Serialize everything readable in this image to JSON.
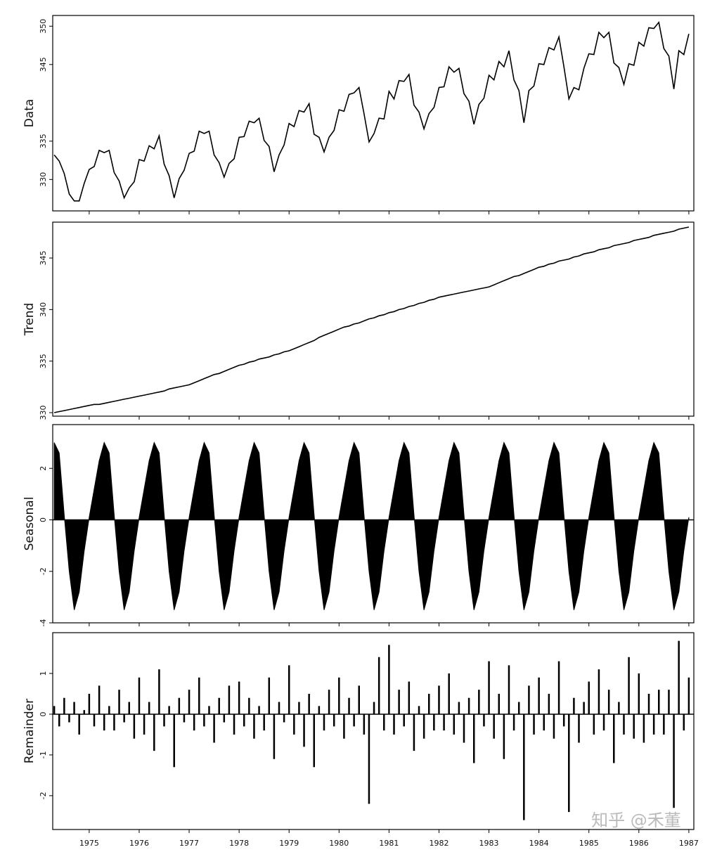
{
  "chart_data": [
    {
      "type": "line",
      "ylabel": "Data",
      "color": "#000000",
      "xlim": [
        1974.27,
        1987.1
      ],
      "ylim": [
        325.9,
        351.4
      ],
      "yticks": [
        330,
        335,
        345,
        350
      ],
      "x": [
        1974.3,
        1974.4,
        1974.5,
        1974.6,
        1974.7,
        1974.8,
        1974.9,
        1975.0,
        1975.1,
        1975.2,
        1975.3,
        1975.4,
        1975.5,
        1975.6,
        1975.7,
        1975.8,
        1975.9,
        1976.0,
        1976.1,
        1976.2,
        1976.3,
        1976.4,
        1976.5,
        1976.6,
        1976.7,
        1976.8,
        1976.9,
        1977.0,
        1977.1,
        1977.2,
        1977.3,
        1977.4,
        1977.5,
        1977.6,
        1977.7,
        1977.8,
        1977.9,
        1978.0,
        1978.1,
        1978.2,
        1978.3,
        1978.4,
        1978.5,
        1978.6,
        1978.7,
        1978.8,
        1978.9,
        1979.0,
        1979.1,
        1979.2,
        1979.3,
        1979.4,
        1979.5,
        1979.6,
        1979.7,
        1979.8,
        1979.9,
        1980.0,
        1980.1,
        1980.2,
        1980.3,
        1980.4,
        1980.5,
        1980.6,
        1980.7,
        1980.8,
        1980.9,
        1981.0,
        1981.1,
        1981.2,
        1981.3,
        1981.4,
        1981.5,
        1981.6,
        1981.7,
        1981.8,
        1981.9,
        1982.0,
        1982.1,
        1982.2,
        1982.3,
        1982.4,
        1982.5,
        1982.6,
        1982.7,
        1982.8,
        1982.9,
        1983.0,
        1983.1,
        1983.2,
        1983.3,
        1983.4,
        1983.5,
        1983.6,
        1983.7,
        1983.8,
        1983.9,
        1984.0,
        1984.1,
        1984.2,
        1984.3,
        1984.4,
        1984.5,
        1984.6,
        1984.7,
        1984.8,
        1984.9,
        1985.0,
        1985.1,
        1985.2,
        1985.3,
        1985.4,
        1985.5,
        1985.6,
        1985.7,
        1985.8,
        1985.9,
        1986.0,
        1986.1,
        1986.2,
        1986.3,
        1986.4,
        1986.5,
        1986.6,
        1986.7,
        1986.8,
        1986.9,
        1987.0
      ],
      "values": [
        333.2,
        332.4,
        330.8,
        328.1,
        327.2,
        327.2,
        329.5,
        331.3,
        331.7,
        333.8,
        333.5,
        333.8,
        330.9,
        329.8,
        327.6,
        328.9,
        329.7,
        332.6,
        332.4,
        334.4,
        334.0,
        335.7,
        332.0,
        330.5,
        327.6,
        330.1,
        331.2,
        333.4,
        333.7,
        336.3,
        336.0,
        336.3,
        333.2,
        332.2,
        330.3,
        332.1,
        332.7,
        335.5,
        335.6,
        337.6,
        337.4,
        338.0,
        335.1,
        334.3,
        331.0,
        333.2,
        334.5,
        337.3,
        336.9,
        339.0,
        338.8,
        339.9,
        335.9,
        335.5,
        333.6,
        335.5,
        336.4,
        339.1,
        338.9,
        341.1,
        341.3,
        342.0,
        338.6,
        334.9,
        336.0,
        338.0,
        337.9,
        341.5,
        340.5,
        342.9,
        342.8,
        343.7,
        339.7,
        338.8,
        336.6,
        338.6,
        339.4,
        342.0,
        342.1,
        344.7,
        344.0,
        344.5,
        341.2,
        340.2,
        337.2,
        339.8,
        340.6,
        343.6,
        343.0,
        345.4,
        344.7,
        346.8,
        343.0,
        341.6,
        337.4,
        341.6,
        342.2,
        345.1,
        345.0,
        347.2,
        346.9,
        348.6,
        344.7,
        340.5,
        342.0,
        341.7,
        344.5,
        346.4,
        346.3,
        349.2,
        348.5,
        349.2,
        345.2,
        344.6,
        342.4,
        345.1,
        344.9,
        347.9,
        347.4,
        349.8,
        349.7,
        350.5,
        347.1,
        346.1,
        341.8,
        346.8,
        346.3,
        349.0
      ]
    },
    {
      "type": "line",
      "ylabel": "Trend",
      "color": "#000000",
      "xlim": [
        1974.27,
        1987.1
      ],
      "ylim": [
        329.66,
        348.48
      ],
      "yticks": [
        330,
        335,
        340,
        345
      ],
      "x": [
        1974.3,
        1974.4,
        1974.5,
        1974.6,
        1974.7,
        1974.8,
        1974.9,
        1975.0,
        1975.1,
        1975.2,
        1975.3,
        1975.4,
        1975.5,
        1975.6,
        1975.7,
        1975.8,
        1975.9,
        1976.0,
        1976.1,
        1976.2,
        1976.3,
        1976.4,
        1976.5,
        1976.6,
        1976.7,
        1976.8,
        1976.9,
        1977.0,
        1977.1,
        1977.2,
        1977.3,
        1977.4,
        1977.5,
        1977.6,
        1977.7,
        1977.8,
        1977.9,
        1978.0,
        1978.1,
        1978.2,
        1978.3,
        1978.4,
        1978.5,
        1978.6,
        1978.7,
        1978.8,
        1978.9,
        1979.0,
        1979.1,
        1979.2,
        1979.3,
        1979.4,
        1979.5,
        1979.6,
        1979.7,
        1979.8,
        1979.9,
        1980.0,
        1980.1,
        1980.2,
        1980.3,
        1980.4,
        1980.5,
        1980.6,
        1980.7,
        1980.8,
        1980.9,
        1981.0,
        1981.1,
        1981.2,
        1981.3,
        1981.4,
        1981.5,
        1981.6,
        1981.7,
        1981.8,
        1981.9,
        1982.0,
        1982.1,
        1982.2,
        1982.3,
        1982.4,
        1982.5,
        1982.6,
        1982.7,
        1982.8,
        1982.9,
        1983.0,
        1983.1,
        1983.2,
        1983.3,
        1983.4,
        1983.5,
        1983.6,
        1983.7,
        1983.8,
        1983.9,
        1984.0,
        1984.1,
        1984.2,
        1984.3,
        1984.4,
        1984.5,
        1984.6,
        1984.7,
        1984.8,
        1984.9,
        1985.0,
        1985.1,
        1985.2,
        1985.3,
        1985.4,
        1985.5,
        1985.6,
        1985.7,
        1985.8,
        1985.9,
        1986.0,
        1986.1,
        1986.2,
        1986.3,
        1986.4,
        1986.5,
        1986.6,
        1986.7,
        1986.8,
        1986.9,
        1987.0
      ],
      "values": [
        330.0,
        330.1,
        330.2,
        330.3,
        330.4,
        330.5,
        330.6,
        330.7,
        330.8,
        330.8,
        330.9,
        331.0,
        331.1,
        331.2,
        331.3,
        331.4,
        331.5,
        331.6,
        331.7,
        331.8,
        331.9,
        332.0,
        332.1,
        332.3,
        332.4,
        332.5,
        332.6,
        332.7,
        332.9,
        333.1,
        333.3,
        333.5,
        333.7,
        333.8,
        334.0,
        334.2,
        334.4,
        334.6,
        334.7,
        334.9,
        335.0,
        335.2,
        335.3,
        335.4,
        335.6,
        335.7,
        335.9,
        336.0,
        336.2,
        336.4,
        336.6,
        336.8,
        337.0,
        337.3,
        337.5,
        337.7,
        337.9,
        338.1,
        338.3,
        338.4,
        338.6,
        338.7,
        338.9,
        339.1,
        339.2,
        339.4,
        339.5,
        339.7,
        339.8,
        340.0,
        340.1,
        340.3,
        340.4,
        340.6,
        340.7,
        340.9,
        341.0,
        341.2,
        341.3,
        341.4,
        341.5,
        341.6,
        341.7,
        341.8,
        341.9,
        342.0,
        342.1,
        342.2,
        342.4,
        342.6,
        342.8,
        343.0,
        343.2,
        343.3,
        343.5,
        343.7,
        343.9,
        344.1,
        344.2,
        344.4,
        344.5,
        344.7,
        344.8,
        344.9,
        345.1,
        345.2,
        345.4,
        345.5,
        345.6,
        345.8,
        345.9,
        346.0,
        346.2,
        346.3,
        346.4,
        346.5,
        346.7,
        346.8,
        346.9,
        347.0,
        347.2,
        347.3,
        347.4,
        347.5,
        347.6,
        347.8,
        347.9,
        348.0
      ]
    },
    {
      "type": "area",
      "ylabel": "Seasonal",
      "color": "#000000",
      "xlim": [
        1974.27,
        1987.1
      ],
      "ylim": [
        -4,
        3.7
      ],
      "yticks": [
        -4,
        -2,
        0,
        2
      ],
      "x": [
        1974.3,
        1974.4,
        1974.5,
        1974.6,
        1974.7,
        1974.8,
        1974.9,
        1975.0,
        1975.1,
        1975.2,
        1975.3,
        1975.4,
        1975.5,
        1975.6,
        1975.7,
        1975.8,
        1975.9,
        1976.0,
        1976.1,
        1976.2,
        1976.3,
        1976.4,
        1976.5,
        1976.6,
        1976.7,
        1976.8,
        1976.9,
        1977.0,
        1977.1,
        1977.2,
        1977.3,
        1977.4,
        1977.5,
        1977.6,
        1977.7,
        1977.8,
        1977.9,
        1978.0,
        1978.1,
        1978.2,
        1978.3,
        1978.4,
        1978.5,
        1978.6,
        1978.7,
        1978.8,
        1978.9,
        1979.0,
        1979.1,
        1979.2,
        1979.3,
        1979.4,
        1979.5,
        1979.6,
        1979.7,
        1979.8,
        1979.9,
        1980.0,
        1980.1,
        1980.2,
        1980.3,
        1980.4,
        1980.5,
        1980.6,
        1980.7,
        1980.8,
        1980.9,
        1981.0,
        1981.1,
        1981.2,
        1981.3,
        1981.4,
        1981.5,
        1981.6,
        1981.7,
        1981.8,
        1981.9,
        1982.0,
        1982.1,
        1982.2,
        1982.3,
        1982.4,
        1982.5,
        1982.6,
        1982.7,
        1982.8,
        1982.9,
        1983.0,
        1983.1,
        1983.2,
        1983.3,
        1983.4,
        1983.5,
        1983.6,
        1983.7,
        1983.8,
        1983.9,
        1984.0,
        1984.1,
        1984.2,
        1984.3,
        1984.4,
        1984.5,
        1984.6,
        1984.7,
        1984.8,
        1984.9,
        1985.0,
        1985.1,
        1985.2,
        1985.3,
        1985.4,
        1985.5,
        1985.6,
        1985.7,
        1985.8,
        1985.9,
        1986.0,
        1986.1,
        1986.2,
        1986.3,
        1986.4,
        1986.5,
        1986.6,
        1986.7,
        1986.8,
        1986.9,
        1987.0
      ],
      "values": [
        3.0,
        2.6,
        0.2,
        -2.0,
        -3.5,
        -2.8,
        -1.2,
        0.1,
        1.2,
        2.3,
        3.0,
        2.6,
        0.2,
        -2.0,
        -3.5,
        -2.8,
        -1.2,
        0.1,
        1.2,
        2.3,
        3.0,
        2.6,
        0.2,
        -2.0,
        -3.5,
        -2.8,
        -1.2,
        0.1,
        1.2,
        2.3,
        3.0,
        2.6,
        0.2,
        -2.0,
        -3.5,
        -2.8,
        -1.2,
        0.1,
        1.2,
        2.3,
        3.0,
        2.6,
        0.2,
        -2.0,
        -3.5,
        -2.8,
        -1.2,
        0.1,
        1.2,
        2.3,
        3.0,
        2.6,
        0.2,
        -2.0,
        -3.5,
        -2.8,
        -1.2,
        0.1,
        1.2,
        2.3,
        3.0,
        2.6,
        0.2,
        -2.0,
        -3.5,
        -2.8,
        -1.2,
        0.1,
        1.2,
        2.3,
        3.0,
        2.6,
        0.2,
        -2.0,
        -3.5,
        -2.8,
        -1.2,
        0.1,
        1.2,
        2.3,
        3.0,
        2.6,
        0.2,
        -2.0,
        -3.5,
        -2.8,
        -1.2,
        0.1,
        1.2,
        2.3,
        3.0,
        2.6,
        0.2,
        -2.0,
        -3.5,
        -2.8,
        -1.2,
        0.1,
        1.2,
        2.3,
        3.0,
        2.6,
        0.2,
        -2.0,
        -3.5,
        -2.8,
        -1.2,
        0.1,
        1.2,
        2.3,
        3.0,
        2.6,
        0.2,
        -2.0,
        -3.5,
        -2.8,
        -1.2,
        0.1,
        1.2,
        2.3,
        3.0,
        2.6,
        0.2,
        -2.0,
        -3.5,
        -2.8,
        -1.2,
        0.1
      ]
    },
    {
      "type": "bar",
      "ylabel": "Remainder",
      "color": "#000000",
      "xlim": [
        1974.27,
        1987.1
      ],
      "ylim": [
        -2.83,
        2.0
      ],
      "yticks": [
        -2,
        -1,
        0,
        1
      ],
      "xticks": [
        1975,
        1976,
        1977,
        1978,
        1979,
        1980,
        1981,
        1982,
        1983,
        1984,
        1985,
        1986,
        1987
      ],
      "x": [
        1974.3,
        1974.4,
        1974.5,
        1974.6,
        1974.7,
        1974.8,
        1974.9,
        1975.0,
        1975.1,
        1975.2,
        1975.3,
        1975.4,
        1975.5,
        1975.6,
        1975.7,
        1975.8,
        1975.9,
        1976.0,
        1976.1,
        1976.2,
        1976.3,
        1976.4,
        1976.5,
        1976.6,
        1976.7,
        1976.8,
        1976.9,
        1977.0,
        1977.1,
        1977.2,
        1977.3,
        1977.4,
        1977.5,
        1977.6,
        1977.7,
        1977.8,
        1977.9,
        1978.0,
        1978.1,
        1978.2,
        1978.3,
        1978.4,
        1978.5,
        1978.6,
        1978.7,
        1978.8,
        1978.9,
        1979.0,
        1979.1,
        1979.2,
        1979.3,
        1979.4,
        1979.5,
        1979.6,
        1979.7,
        1979.8,
        1979.9,
        1980.0,
        1980.1,
        1980.2,
        1980.3,
        1980.4,
        1980.5,
        1980.6,
        1980.7,
        1980.8,
        1980.9,
        1981.0,
        1981.1,
        1981.2,
        1981.3,
        1981.4,
        1981.5,
        1981.6,
        1981.7,
        1981.8,
        1981.9,
        1982.0,
        1982.1,
        1982.2,
        1982.3,
        1982.4,
        1982.5,
        1982.6,
        1982.7,
        1982.8,
        1982.9,
        1983.0,
        1983.1,
        1983.2,
        1983.3,
        1983.4,
        1983.5,
        1983.6,
        1983.7,
        1983.8,
        1983.9,
        1984.0,
        1984.1,
        1984.2,
        1984.3,
        1984.4,
        1984.5,
        1984.6,
        1984.7,
        1984.8,
        1984.9,
        1985.0,
        1985.1,
        1985.2,
        1985.3,
        1985.4,
        1985.5,
        1985.6,
        1985.7,
        1985.8,
        1985.9,
        1986.0,
        1986.1,
        1986.2,
        1986.3,
        1986.4,
        1986.5,
        1986.6,
        1986.7,
        1986.8,
        1986.9,
        1987.0
      ],
      "values": [
        0.2,
        -0.3,
        0.4,
        -0.2,
        0.3,
        -0.5,
        0.1,
        0.5,
        -0.3,
        0.7,
        -0.4,
        0.2,
        -0.4,
        0.6,
        -0.2,
        0.3,
        -0.6,
        0.9,
        -0.5,
        0.3,
        -0.9,
        1.1,
        -0.3,
        0.2,
        -1.3,
        0.4,
        -0.2,
        0.6,
        -0.4,
        0.9,
        -0.3,
        0.2,
        -0.7,
        0.4,
        -0.2,
        0.7,
        -0.5,
        0.8,
        -0.3,
        0.4,
        -0.6,
        0.2,
        -0.4,
        0.9,
        -1.1,
        0.3,
        -0.2,
        1.2,
        -0.5,
        0.3,
        -0.8,
        0.5,
        -1.3,
        0.2,
        -0.4,
        0.6,
        -0.3,
        0.9,
        -0.6,
        0.4,
        -0.3,
        0.7,
        -0.5,
        -2.2,
        0.3,
        1.4,
        -0.4,
        1.7,
        -0.5,
        0.6,
        -0.3,
        0.8,
        -0.9,
        0.2,
        -0.6,
        0.5,
        -0.4,
        0.7,
        -0.4,
        1.0,
        -0.5,
        0.3,
        -0.7,
        0.4,
        -1.2,
        0.6,
        -0.3,
        1.3,
        -0.6,
        0.5,
        -1.1,
        1.2,
        -0.4,
        0.3,
        -2.6,
        0.7,
        -0.5,
        0.9,
        -0.4,
        0.5,
        -0.6,
        1.3,
        -0.3,
        -2.4,
        0.4,
        -0.7,
        0.3,
        0.8,
        -0.5,
        1.1,
        -0.4,
        0.6,
        -1.2,
        0.3,
        -0.5,
        1.4,
        -0.6,
        1.0,
        -0.7,
        0.5,
        -0.5,
        0.6,
        -0.5,
        0.6,
        -2.3,
        1.8,
        -0.4,
        0.9
      ]
    }
  ],
  "watermark": "知乎 @禾董"
}
